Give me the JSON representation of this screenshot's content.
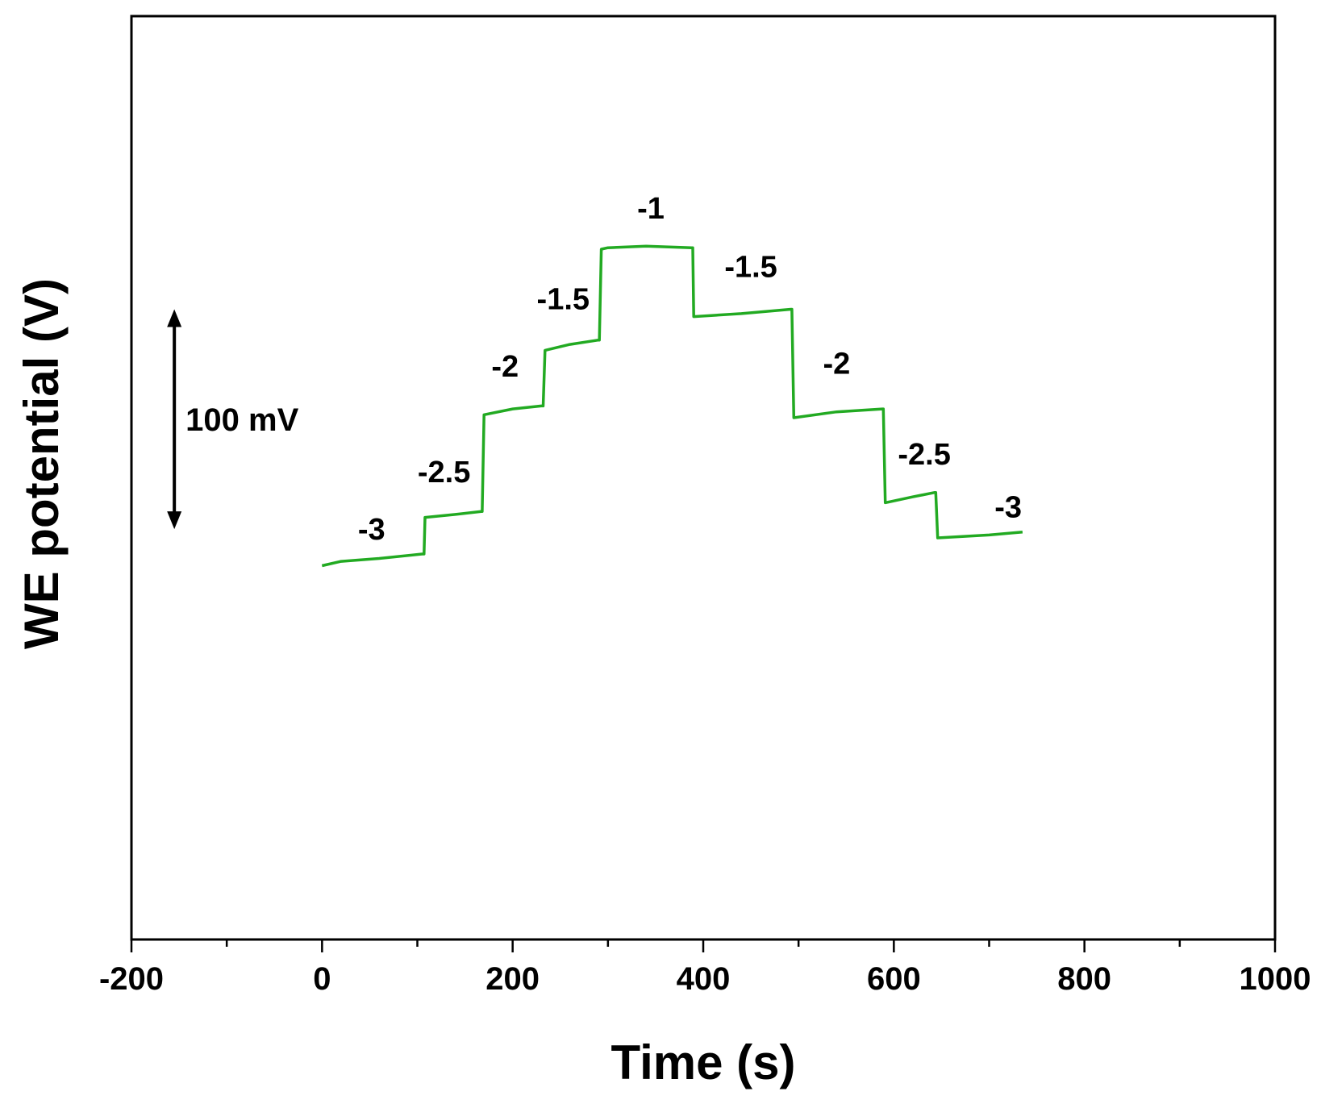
{
  "chart_data": {
    "type": "line",
    "title": "",
    "xlabel": "Time (s)",
    "ylabel": "WE potential (V)",
    "xlim": [
      -200,
      1000
    ],
    "xticks": [
      -200,
      0,
      200,
      400,
      600,
      800,
      1000
    ],
    "ylim": [
      -380,
      250
    ],
    "yunits": "mV (relative, scale bar only)",
    "grid": false,
    "legend": "none",
    "scale_bar": {
      "label": "100 mV",
      "x": -155,
      "from": -100,
      "to": 50
    },
    "series": [
      {
        "name": "WE potential",
        "color": "#22aa22",
        "points": [
          [
            0,
            -125
          ],
          [
            20,
            -122
          ],
          [
            60,
            -120
          ],
          [
            105,
            -117
          ],
          [
            107,
            -117
          ],
          [
            108,
            -92
          ],
          [
            140,
            -90
          ],
          [
            167,
            -88
          ],
          [
            168,
            -88
          ],
          [
            170,
            -22
          ],
          [
            200,
            -18
          ],
          [
            230,
            -16
          ],
          [
            232,
            -16
          ],
          [
            234,
            22
          ],
          [
            260,
            26
          ],
          [
            290,
            29
          ],
          [
            291,
            29
          ],
          [
            293,
            91
          ],
          [
            300,
            92
          ],
          [
            340,
            93
          ],
          [
            388,
            92
          ],
          [
            389,
            92
          ],
          [
            390,
            45
          ],
          [
            440,
            47
          ],
          [
            492,
            50
          ],
          [
            493,
            50
          ],
          [
            495,
            -24
          ],
          [
            540,
            -20
          ],
          [
            588,
            -18
          ],
          [
            589,
            -18
          ],
          [
            591,
            -82
          ],
          [
            620,
            -78
          ],
          [
            643,
            -75
          ],
          [
            644,
            -75
          ],
          [
            646,
            -106
          ],
          [
            700,
            -104
          ],
          [
            735,
            -102
          ]
        ]
      }
    ],
    "annotations": [
      {
        "text": "-3",
        "x": 52,
        "y": -107
      },
      {
        "text": "-2.5",
        "x": 128,
        "y": -68
      },
      {
        "text": "-2",
        "x": 192,
        "y": 4
      },
      {
        "text": "-1.5",
        "x": 253,
        "y": 50
      },
      {
        "text": "-1",
        "x": 345,
        "y": 112
      },
      {
        "text": "-1.5",
        "x": 450,
        "y": 72
      },
      {
        "text": "-2",
        "x": 540,
        "y": 6
      },
      {
        "text": "-2.5",
        "x": 632,
        "y": -56
      },
      {
        "text": "-3",
        "x": 720,
        "y": -92
      }
    ]
  }
}
